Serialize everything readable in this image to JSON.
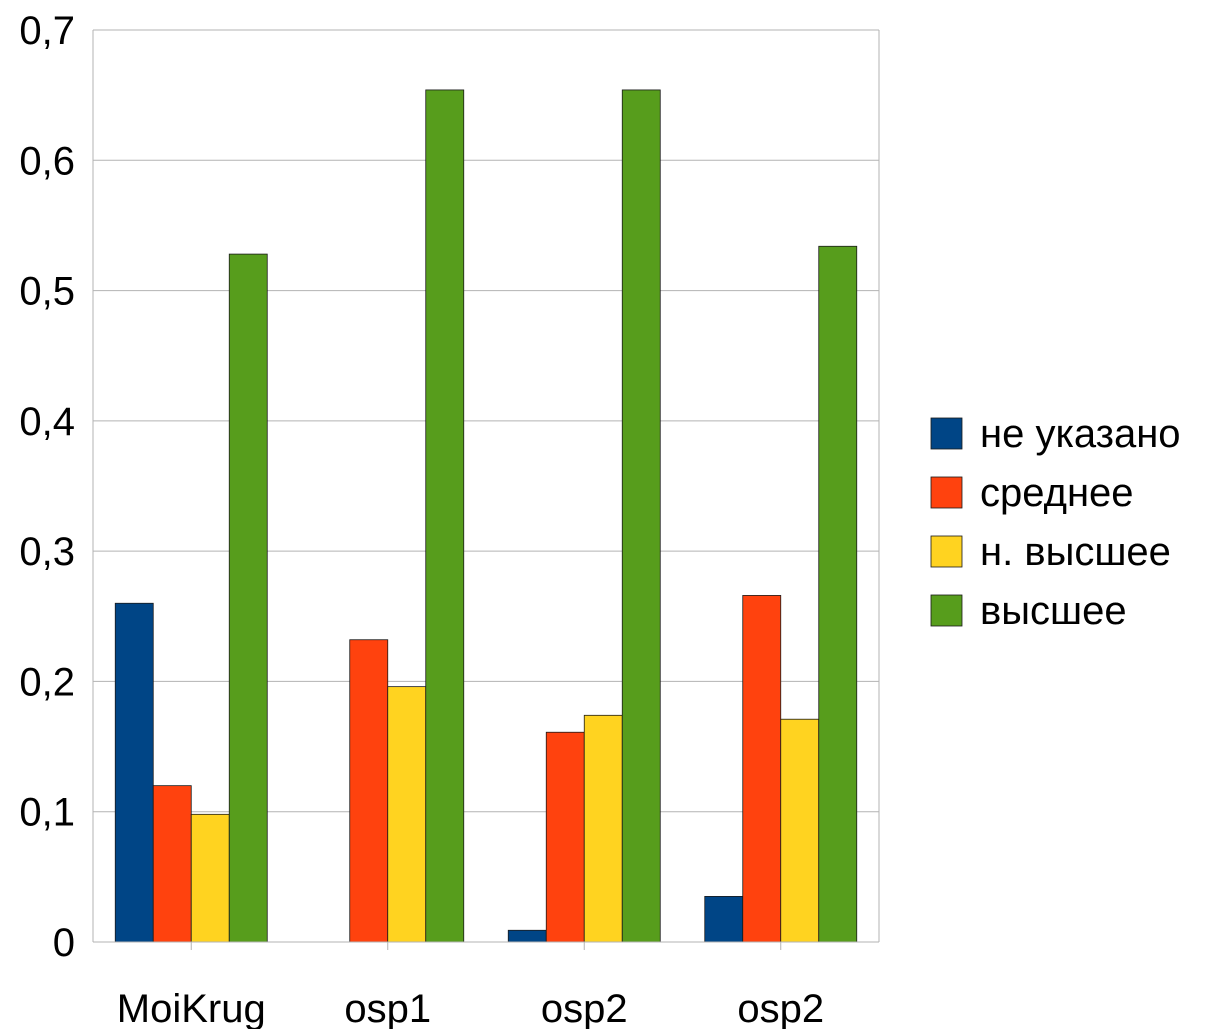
{
  "chart_data": {
    "type": "bar",
    "categories": [
      "MoiKrug",
      "osp1",
      "osp2",
      "osp2"
    ],
    "series": [
      {
        "name": "не указано",
        "color": "#004586",
        "values": [
          0.26,
          0.0,
          0.009,
          0.035
        ]
      },
      {
        "name": "среднее",
        "color": "#ff420e",
        "values": [
          0.12,
          0.232,
          0.161,
          0.266
        ]
      },
      {
        "name": "н. высшее",
        "color": "#ffd320",
        "values": [
          0.098,
          0.196,
          0.174,
          0.171
        ]
      },
      {
        "name": "высшее",
        "color": "#579d1c",
        "values": [
          0.528,
          0.654,
          0.654,
          0.534
        ]
      }
    ],
    "yticks": [
      "0",
      "0,1",
      "0,2",
      "0,3",
      "0,4",
      "0,5",
      "0,6",
      "0,7"
    ],
    "ylim": [
      0,
      0.7
    ],
    "grid": true,
    "legend_position": "right"
  }
}
